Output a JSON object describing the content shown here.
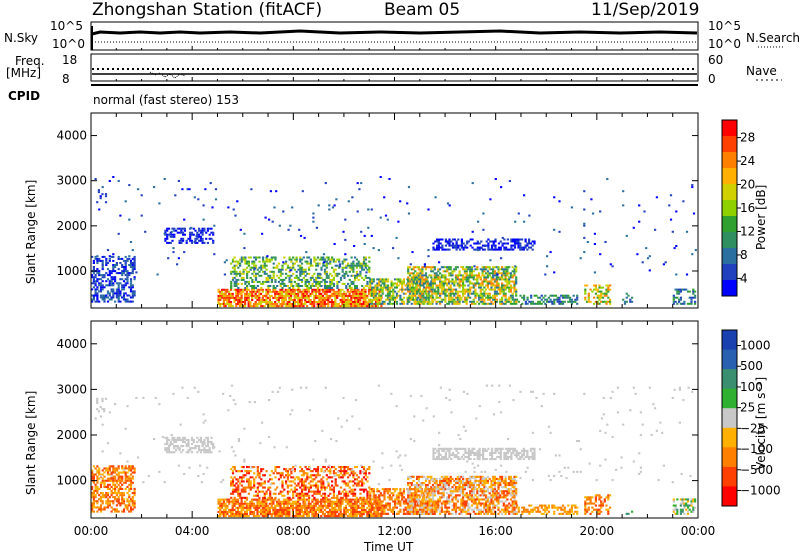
{
  "header": {
    "station": "Zhongshan Station (fitACF)",
    "beam": "Beam 05",
    "date": "11/Sep/2019"
  },
  "strip_panels": {
    "nsky_label": "N.Sky",
    "nsearch_label": "N.Search",
    "nsearch_ticks": [
      "10^5",
      "10^0"
    ],
    "nsky_ticks": [
      "10^5",
      "10^0"
    ],
    "freq_label_1": "Freq.",
    "freq_label_2": "[MHz]",
    "freq_ticks": [
      "18",
      "8"
    ],
    "nave_label": "Nave",
    "nave_ticks": [
      "60",
      "0"
    ],
    "cpid_label": "CPID",
    "cpid_text": "normal (fast stereo) 153"
  },
  "chart_data": [
    {
      "type": "heatmap",
      "name": "power",
      "ylabel": "Slant Range [km]",
      "xlabel": "Time UT",
      "x_ticks": [
        "00:00",
        "04:00",
        "08:00",
        "12:00",
        "16:00",
        "20:00",
        "00:00"
      ],
      "y_ticks": [
        1000,
        2000,
        3000,
        4000
      ],
      "ylim": [
        180,
        4500
      ],
      "xlim_hours": [
        0,
        24
      ],
      "colorbar_label": "Power [dB]",
      "colorbar_ticks": [
        "28",
        "24",
        "20",
        "16",
        "12",
        "8",
        "4"
      ],
      "colorbar_colors": [
        "#ff0000",
        "#ff4000",
        "#ff8000",
        "#ffb000",
        "#d0d000",
        "#8fd000",
        "#30a030",
        "#2f8f60",
        "#2a6fa0",
        "#2040c0",
        "#0000ff"
      ]
    },
    {
      "type": "heatmap",
      "name": "velocity",
      "ylabel": "Slant Range [km]",
      "xlabel": "Time UT",
      "x_ticks": [
        "00:00",
        "04:00",
        "08:00",
        "12:00",
        "16:00",
        "20:00",
        "00:00"
      ],
      "y_ticks": [
        1000,
        2000,
        3000,
        4000
      ],
      "ylim": [
        180,
        4500
      ],
      "xlim_hours": [
        0,
        24
      ],
      "colorbar_label": "Velocity [m s⁻¹]",
      "colorbar_ticks": [
        "1000",
        "500",
        "100",
        "25",
        "−25",
        "−100",
        "−500",
        "−1000"
      ],
      "colorbar_colors": [
        "#1a3faf",
        "#2a60b0",
        "#3a8f70",
        "#30b030",
        "#c8c8c8",
        "#ffb000",
        "#ff8000",
        "#ff4000",
        "#ff0000"
      ]
    }
  ]
}
